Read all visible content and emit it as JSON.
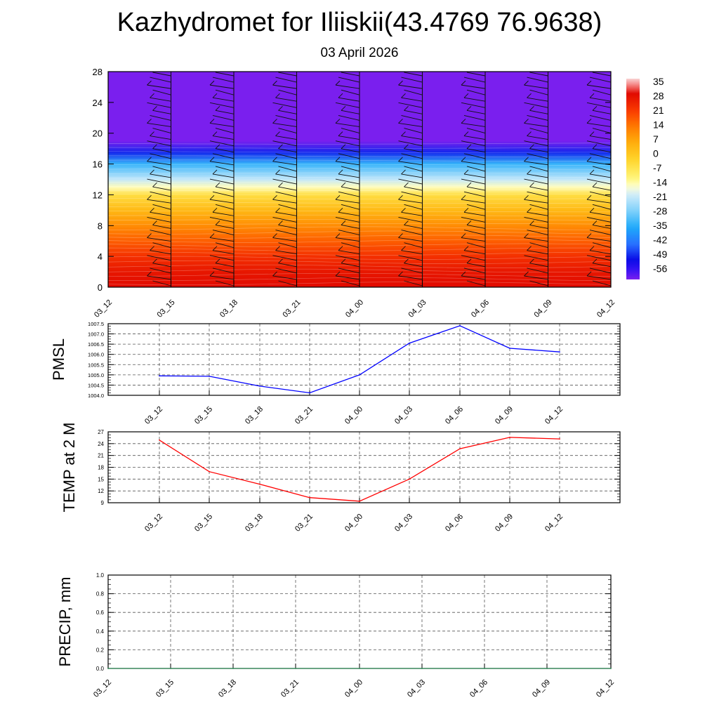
{
  "page": {
    "title": "Kazhydromet for Iliiskii(43.4769 76.9638)",
    "subtitle": "03 April 2026"
  },
  "chart_data": [
    {
      "type": "heatmap",
      "name": "temperature-height-section",
      "x_labels": [
        "03_12",
        "03_15",
        "03_18",
        "03_21",
        "04_00",
        "04_03",
        "04_06",
        "04_09",
        "04_12"
      ],
      "y_ticks": [
        0,
        4,
        8,
        12,
        16,
        20,
        24,
        28
      ],
      "ylim": [
        0,
        28
      ],
      "colorbar_labels": [
        "35",
        "28",
        "21",
        "14",
        "7",
        "0",
        "-7",
        "-14",
        "-21",
        "-28",
        "-35",
        "-42",
        "-49",
        "-56"
      ],
      "profile": [
        {
          "h": 0,
          "t": 30
        },
        {
          "h": 2,
          "t": 28
        },
        {
          "h": 4,
          "t": 24
        },
        {
          "h": 6,
          "t": 18
        },
        {
          "h": 8,
          "t": 12
        },
        {
          "h": 10,
          "t": 5
        },
        {
          "h": 12,
          "t": -3
        },
        {
          "h": 13,
          "t": -12
        },
        {
          "h": 14,
          "t": -18
        },
        {
          "h": 16,
          "t": -30
        },
        {
          "h": 17.5,
          "t": -45
        },
        {
          "h": 19,
          "t": -56
        },
        {
          "h": 28,
          "t": -56
        }
      ],
      "wind_barbs": true
    },
    {
      "type": "line",
      "name": "pmsl",
      "ylabel": "PMSL",
      "x_labels": [
        "03_12",
        "03_15",
        "03_18",
        "03_21",
        "04_00",
        "04_03",
        "04_06",
        "04_09",
        "04_12"
      ],
      "y_ticks": [
        "1004.0",
        "1004.5",
        "1005.0",
        "1005.5",
        "1006.0",
        "1006.5",
        "1007.0",
        "1007.5"
      ],
      "ylim": [
        1004.0,
        1007.5
      ],
      "values": [
        1004.95,
        1004.93,
        1004.45,
        1004.12,
        1005.0,
        1006.55,
        1007.4,
        1006.3,
        1006.12
      ],
      "color": "#0000ff",
      "grid": true
    },
    {
      "type": "line",
      "name": "temp-2m",
      "ylabel": "TEMP at 2 M",
      "x_labels": [
        "03_12",
        "03_15",
        "03_18",
        "03_21",
        "04_00",
        "04_03",
        "04_06",
        "04_09",
        "04_12"
      ],
      "y_ticks": [
        "9",
        "12",
        "15",
        "18",
        "21",
        "24",
        "27"
      ],
      "ylim": [
        9,
        27
      ],
      "values": [
        24.9,
        16.9,
        13.7,
        10.3,
        9.4,
        15.0,
        22.7,
        25.6,
        25.2
      ],
      "color": "#ff0000",
      "grid": true
    },
    {
      "type": "line",
      "name": "precip",
      "ylabel": "PRECIP, mm",
      "x_labels": [
        "03_12",
        "03_15",
        "03_18",
        "03_21",
        "04_00",
        "04_03",
        "04_06",
        "04_09",
        "04_12"
      ],
      "y_ticks": [
        "0.0",
        "0.2",
        "0.4",
        "0.6",
        "0.8",
        "1.0"
      ],
      "ylim": [
        0.0,
        1.0
      ],
      "values": [
        0,
        0,
        0,
        0,
        0,
        0,
        0,
        0,
        0
      ],
      "color": "#2e8b57",
      "grid": true
    }
  ]
}
